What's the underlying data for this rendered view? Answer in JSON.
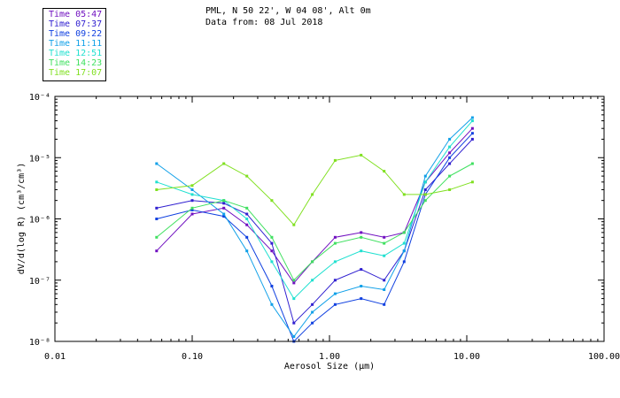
{
  "header": {
    "location": "PML, N 50 22', W 04 08', Alt 0m",
    "date": "Data from: 08 Jul 2018"
  },
  "legend": [
    {
      "label": "Time 05:47",
      "color": "#7010c0"
    },
    {
      "label": "Time 07:37",
      "color": "#3020d0"
    },
    {
      "label": "Time 09:22",
      "color": "#1040e0"
    },
    {
      "label": "Time 11:11",
      "color": "#10a0e8"
    },
    {
      "label": "Time 12:51",
      "color": "#20e0d0"
    },
    {
      "label": "Time 14:23",
      "color": "#40e060"
    },
    {
      "label": "Time 17:07",
      "color": "#80e020"
    }
  ],
  "chart_data": {
    "type": "line",
    "xscale": "log",
    "yscale": "log",
    "xlim": [
      0.01,
      100
    ],
    "ylim": [
      1e-08,
      0.0001
    ],
    "xlabel": "Aerosol Size (μm)",
    "ylabel": "dV/d(log R) (cm³/cm³)",
    "xtick_labels": [
      "0.01",
      "0.10",
      "1.00",
      "10.00",
      "100.00"
    ],
    "ytick_labels": [
      "10⁻⁸",
      "10⁻⁷",
      "10⁻⁶",
      "10⁻⁵",
      "10⁻⁴"
    ],
    "x": [
      0.055,
      0.1,
      0.17,
      0.25,
      0.38,
      0.55,
      0.75,
      1.1,
      1.7,
      2.5,
      3.5,
      5.0,
      7.5,
      11.0
    ],
    "series": [
      {
        "name": "Time 05:47",
        "color": "#7010c0",
        "values": [
          3e-07,
          1.2e-06,
          1.5e-06,
          8e-07,
          3e-07,
          9e-08,
          2e-07,
          5e-07,
          6e-07,
          5e-07,
          6e-07,
          4e-06,
          1.2e-05,
          3e-05
        ]
      },
      {
        "name": "Time 07:37",
        "color": "#3020d0",
        "values": [
          1.5e-06,
          2e-06,
          1.8e-06,
          1.2e-06,
          4e-07,
          2e-08,
          4e-08,
          1e-07,
          1.5e-07,
          1e-07,
          3e-07,
          3e-06,
          8e-06,
          2e-05
        ]
      },
      {
        "name": "Time 09:22",
        "color": "#1040e0",
        "values": [
          1e-06,
          1.4e-06,
          1.1e-06,
          5e-07,
          8e-08,
          1e-08,
          2e-08,
          4e-08,
          5e-08,
          4e-08,
          2e-07,
          2.5e-06,
          1e-05,
          2.5e-05
        ]
      },
      {
        "name": "Time 11:11",
        "color": "#10a0e8",
        "values": [
          8e-06,
          3e-06,
          1.2e-06,
          3e-07,
          4e-08,
          1.2e-08,
          3e-08,
          6e-08,
          8e-08,
          7e-08,
          3e-07,
          5e-06,
          2e-05,
          4.5e-05
        ]
      },
      {
        "name": "Time 12:51",
        "color": "#20e0d0",
        "values": [
          4e-06,
          2.5e-06,
          2e-06,
          1e-06,
          2e-07,
          5e-08,
          1e-07,
          2e-07,
          3e-07,
          2.5e-07,
          4e-07,
          4e-06,
          1.5e-05,
          4e-05
        ]
      },
      {
        "name": "Time 14:23",
        "color": "#40e060",
        "values": [
          5e-07,
          1.5e-06,
          2e-06,
          1.5e-06,
          5e-07,
          1e-07,
          2e-07,
          4e-07,
          5e-07,
          4e-07,
          6e-07,
          2e-06,
          5e-06,
          8e-06
        ]
      },
      {
        "name": "Time 17:07",
        "color": "#80e020",
        "values": [
          3e-06,
          3.5e-06,
          8e-06,
          5e-06,
          2e-06,
          8e-07,
          2.5e-06,
          9e-06,
          1.1e-05,
          6e-06,
          2.5e-06,
          2.5e-06,
          3e-06,
          4e-06
        ]
      }
    ]
  }
}
